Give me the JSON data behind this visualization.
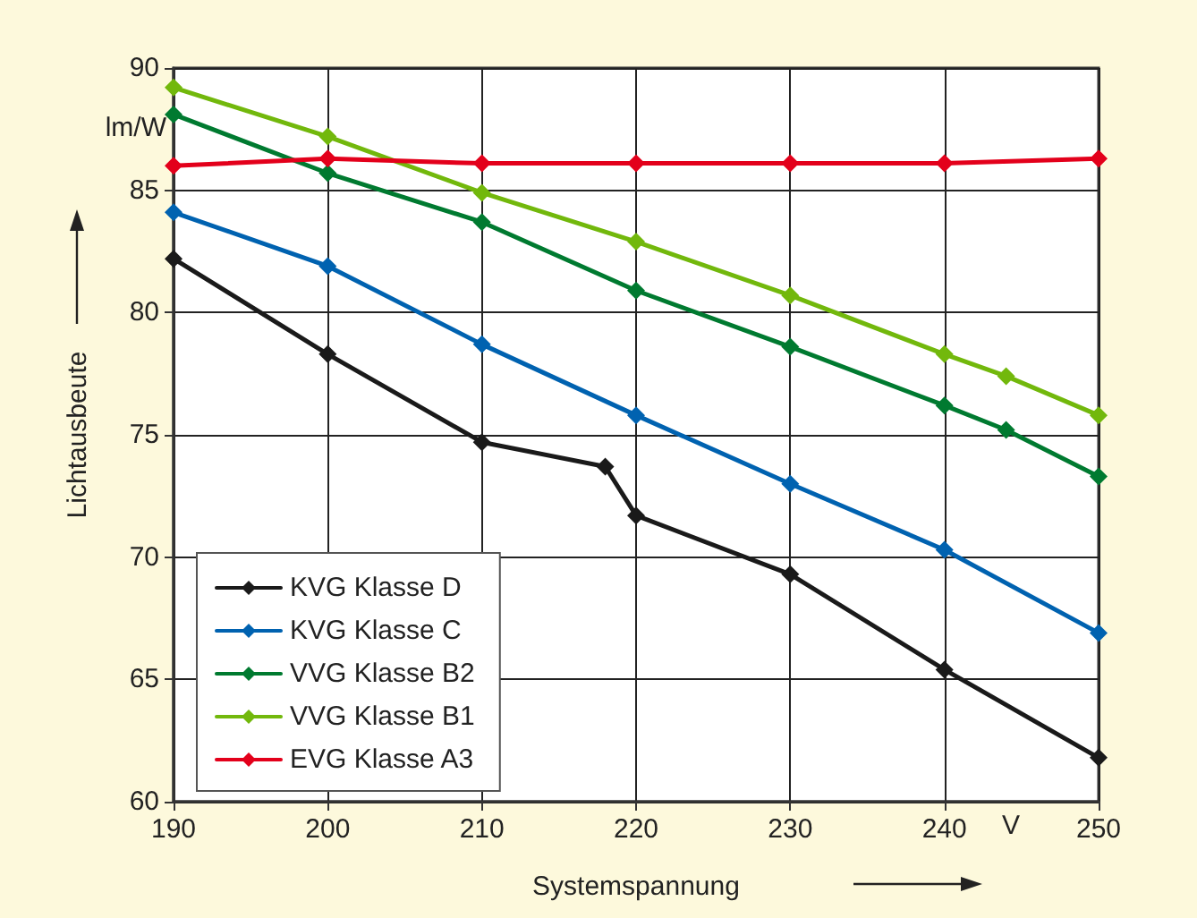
{
  "chart_data": {
    "type": "line",
    "xlabel": "Systemspannung",
    "ylabel": "Lichtausbeute",
    "annotations": [
      "lm/W",
      "V"
    ],
    "xlim": [
      190,
      250
    ],
    "xticks": [
      190,
      200,
      210,
      220,
      230,
      240,
      250
    ],
    "ylim": [
      60,
      90
    ],
    "yticks": [
      60,
      65,
      70,
      75,
      80,
      85,
      90
    ],
    "grid": true,
    "legend": "bottom left",
    "marker": "diamond",
    "line_style": "solid",
    "series": [
      {
        "name": "KVG Klasse D",
        "color": "#1a1a1a",
        "x": [
          190,
          200,
          210,
          218,
          220,
          230,
          240,
          250
        ],
        "values": [
          82.2,
          78.3,
          74.7,
          73.7,
          71.7,
          69.3,
          65.4,
          61.8
        ]
      },
      {
        "name": "KVG Klasse C",
        "color": "#0062b0",
        "x": [
          190,
          200,
          210,
          220,
          230,
          240,
          250
        ],
        "values": [
          84.1,
          81.9,
          78.7,
          75.8,
          73.0,
          70.3,
          66.9
        ]
      },
      {
        "name": "VVG Klasse B2",
        "color": "#007a30",
        "x": [
          190,
          200,
          210,
          220,
          230,
          240,
          244,
          250
        ],
        "values": [
          88.1,
          85.7,
          83.7,
          80.9,
          78.6,
          76.2,
          75.2,
          73.3
        ]
      },
      {
        "name": "VVG Klasse B1",
        "color": "#72b80c",
        "x": [
          190,
          200,
          210,
          220,
          230,
          240,
          244,
          250
        ],
        "values": [
          89.2,
          87.2,
          84.9,
          82.9,
          80.7,
          78.3,
          77.4,
          75.8
        ]
      },
      {
        "name": "EVG Klasse A3",
        "color": "#e3001b",
        "x": [
          190,
          200,
          210,
          220,
          230,
          240,
          250
        ],
        "values": [
          86.0,
          86.3,
          86.1,
          86.1,
          86.1,
          86.1,
          86.3
        ]
      }
    ]
  }
}
